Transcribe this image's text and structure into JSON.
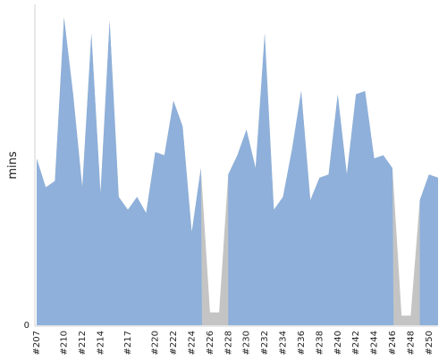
{
  "chart_data": {
    "type": "area",
    "title": "",
    "xlabel": "",
    "ylabel": "mins",
    "ylim": [
      0,
      1
    ],
    "y_ticks": [
      {
        "value": 0,
        "label": "0"
      }
    ],
    "grid": false,
    "x": [
      "#207",
      "#208",
      "#209",
      "#210",
      "#211",
      "#212",
      "#213",
      "#214",
      "#215",
      "#216",
      "#217",
      "#218",
      "#219",
      "#220",
      "#221",
      "#222",
      "#223",
      "#224",
      "#225",
      "#226",
      "#227",
      "#228",
      "#229",
      "#230",
      "#231",
      "#232",
      "#233",
      "#234",
      "#235",
      "#236",
      "#237",
      "#238",
      "#239",
      "#240",
      "#241",
      "#242",
      "#243",
      "#244",
      "#245",
      "#246",
      "#247",
      "#248",
      "#249",
      "#250",
      "#251"
    ],
    "x_tick_labels": [
      "#207",
      "#210",
      "#212",
      "#214",
      "#217",
      "#220",
      "#222",
      "#224",
      "#226",
      "#228",
      "#230",
      "#232",
      "#234",
      "#236",
      "#238",
      "#240",
      "#242",
      "#244",
      "#246",
      "#248",
      "#250"
    ],
    "series": [
      {
        "values": [
          0.52,
          0.43,
          0.45,
          0.96,
          0.72,
          0.43,
          0.91,
          0.41,
          0.95,
          0.4,
          0.36,
          0.4,
          0.35,
          0.54,
          0.53,
          0.7,
          0.62,
          0.29,
          0.49,
          0.04,
          0.04,
          0.47,
          0.53,
          0.61,
          0.49,
          0.91,
          0.36,
          0.4,
          0.55,
          0.73,
          0.39,
          0.46,
          0.47,
          0.72,
          0.47,
          0.72,
          0.73,
          0.52,
          0.53,
          0.49,
          0.03,
          0.03,
          0.39,
          0.47,
          0.46
        ],
        "color": "#8eb0da"
      }
    ],
    "failure_color": "#c4c4c4"
  }
}
